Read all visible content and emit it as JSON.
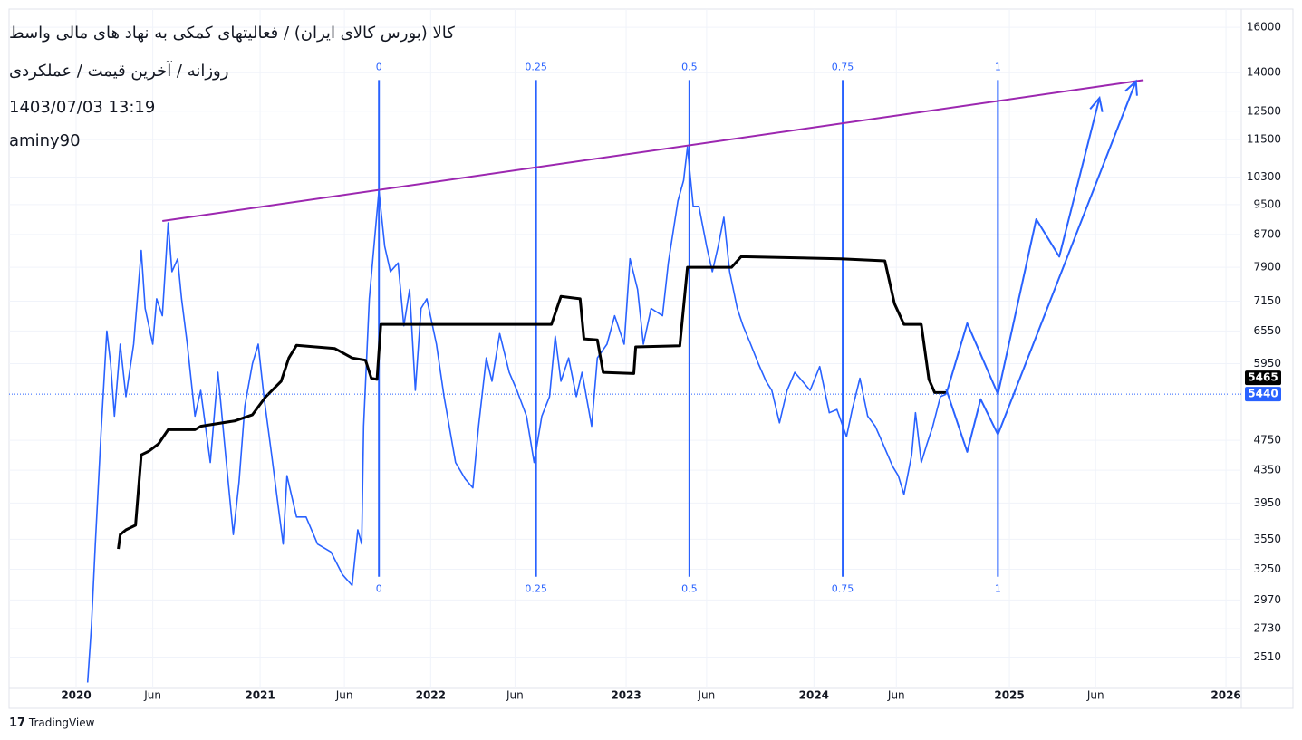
{
  "chart_data": {
    "type": "line",
    "title": "کالا (بورس کالای ایران) / فعالیتهای کمکی به نهاد های مالی واسط",
    "subtitle": "روزانه / آخرین قیمت / عملکردی",
    "date": "1403/07/03 13:19",
    "author": "aminy90",
    "brand": "TradingView",
    "log_scale": true,
    "grid": true,
    "xlim": [
      2019.65,
      2026.08
    ],
    "xticks": [
      {
        "value": 2020,
        "label": "2020"
      },
      {
        "value": 2020.4,
        "label": "Jun"
      },
      {
        "value": 2020.96,
        "label": "2021"
      },
      {
        "value": 2021.4,
        "label": "Jun"
      },
      {
        "value": 2021.85,
        "label": "2022"
      },
      {
        "value": 2022.29,
        "label": "Jun"
      },
      {
        "value": 2022.87,
        "label": "2023"
      },
      {
        "value": 2023.29,
        "label": "Jun"
      },
      {
        "value": 2023.85,
        "label": "2024"
      },
      {
        "value": 2024.28,
        "label": "Jun"
      },
      {
        "value": 2024.87,
        "label": "2025"
      },
      {
        "value": 2025.32,
        "label": "Jun"
      },
      {
        "value": 2026,
        "label": "2026"
      }
    ],
    "ylim": [
      2290,
      16880
    ],
    "yticks": [
      2510,
      2730,
      2970,
      3250,
      3550,
      3950,
      4350,
      4750,
      5950,
      6550,
      7150,
      7900,
      8700,
      9500,
      10300,
      11500,
      12500,
      14000,
      16000
    ],
    "series": [
      {
        "color": "#2962ff",
        "width": 1.6,
        "x": [
          2020.06,
          2020.08,
          2020.1,
          2020.13,
          2020.16,
          2020.18,
          2020.2,
          2020.23,
          2020.26,
          2020.3,
          2020.34,
          2020.36,
          2020.4,
          2020.42,
          2020.45,
          2020.48,
          2020.5,
          2020.53,
          2020.55,
          2020.58,
          2020.62,
          2020.65,
          2020.7,
          2020.74,
          2020.78,
          2020.82,
          2020.85,
          2020.88,
          2020.92,
          2020.95,
          2020.98,
          2021.02,
          2021.05,
          2021.08,
          2021.1,
          2021.15,
          2021.2,
          2021.26,
          2021.33,
          2021.39,
          2021.44,
          2021.47,
          2021.49,
          2021.5,
          2021.53,
          2021.58,
          2021.61,
          2021.64,
          2021.68,
          2021.71,
          2021.74,
          2021.77,
          2021.8,
          2021.83,
          2021.88,
          2021.92,
          2021.98,
          2022.03,
          2022.07,
          2022.1,
          2022.14,
          2022.17,
          2022.21,
          2022.26,
          2022.3,
          2022.35,
          2022.39,
          2022.43,
          2022.47,
          2022.5,
          2022.53,
          2022.57,
          2022.61,
          2022.64,
          2022.69,
          2022.72,
          2022.77,
          2022.81,
          2022.86,
          2022.89,
          2022.93,
          2022.96,
          2023.0,
          2023.06,
          2023.09,
          2023.14,
          2023.17,
          2023.19,
          2023.22,
          2023.25,
          2023.29,
          2023.32,
          2023.35,
          2023.38,
          2023.41,
          2023.45,
          2023.48,
          2023.52,
          2023.56,
          2023.6,
          2023.63,
          2023.67,
          2023.71,
          2023.75,
          2023.79,
          2023.83,
          2023.88,
          2023.93,
          2023.97,
          2024.02,
          2024.05,
          2024.09,
          2024.13,
          2024.17,
          2024.21,
          2024.26,
          2024.29,
          2024.32,
          2024.36,
          2024.38,
          2024.41,
          2024.44,
          2024.47,
          2024.51,
          2024.54
        ],
        "values": [
          2330,
          2750,
          3500,
          4850,
          6550,
          5950,
          5100,
          6300,
          5400,
          6300,
          8300,
          7000,
          6300,
          7200,
          6850,
          9000,
          7800,
          8100,
          7200,
          6300,
          5100,
          5500,
          4450,
          5800,
          4550,
          3600,
          4200,
          5250,
          5950,
          6300,
          5400,
          4550,
          3990,
          3500,
          4280,
          3790,
          3790,
          3500,
          3420,
          3200,
          3100,
          3650,
          3500,
          4950,
          7200,
          9900,
          8400,
          7800,
          8000,
          6650,
          7400,
          5500,
          7000,
          7200,
          6300,
          5400,
          4450,
          4240,
          4130,
          4950,
          6050,
          5650,
          6500,
          5800,
          5500,
          5100,
          4450,
          5100,
          5400,
          6450,
          5650,
          6050,
          5400,
          5800,
          4950,
          6050,
          6300,
          6850,
          6300,
          8100,
          7400,
          6300,
          7000,
          6850,
          8000,
          9600,
          10200,
          11250,
          9450,
          9450,
          8400,
          7800,
          8400,
          9150,
          7800,
          7000,
          6650,
          6300,
          5950,
          5650,
          5500,
          5000,
          5500,
          5800,
          5650,
          5500,
          5900,
          5150,
          5200,
          4800,
          5200,
          5700,
          5100,
          4950,
          4700,
          4400,
          4280,
          4050,
          4550,
          5150,
          4450,
          4700,
          4950,
          5400,
          5440
        ]
      },
      {
        "color": "#000000",
        "width": 3,
        "x": [
          2020.22,
          2020.23,
          2020.26,
          2020.31,
          2020.34,
          2020.38,
          2020.43,
          2020.48,
          2020.62,
          2020.65,
          2020.83,
          2020.92,
          2020.99,
          2021.07,
          2021.11,
          2021.15,
          2021.35,
          2021.44,
          2021.51,
          2021.54,
          2021.57,
          2021.59,
          2022.48,
          2022.53,
          2022.63,
          2022.65,
          2022.72,
          2022.75,
          2022.91,
          2022.92,
          2023.15,
          2023.19,
          2023.42,
          2023.47,
          2023.99,
          2024.22,
          2024.27,
          2024.32,
          2024.41,
          2024.45,
          2024.48,
          2024.54
        ],
        "values": [
          3450,
          3600,
          3650,
          3700,
          4550,
          4600,
          4700,
          4900,
          4900,
          4950,
          5030,
          5120,
          5400,
          5650,
          6050,
          6280,
          6220,
          6050,
          6010,
          5700,
          5680,
          6680,
          6680,
          7250,
          7200,
          6400,
          6380,
          5800,
          5780,
          6250,
          6270,
          7900,
          7900,
          8150,
          8100,
          8050,
          7100,
          6680,
          6680,
          5680,
          5465,
          5465
        ]
      }
    ],
    "trend_line": {
      "color": "#9c27b0",
      "x": [
        2020.45,
        2025.57
      ],
      "values": [
        9050,
        13700
      ]
    },
    "time_zones": {
      "color": "#2962ff",
      "x": [
        2021.58,
        2022.4,
        2023.2,
        2024.0,
        2024.81
      ],
      "labels": [
        0,
        0.25,
        0.5,
        0.75,
        1
      ],
      "top": 13700,
      "bottom": 3180
    },
    "projections": [
      {
        "color": "#2962ff",
        "x": [
          2024.54,
          2024.65,
          2024.81,
          2025.01,
          2025.13,
          2025.34
        ],
        "values": [
          5440,
          6700,
          5440,
          9100,
          8150,
          13000
        ]
      },
      {
        "color": "#2962ff",
        "x": [
          2024.54,
          2024.65,
          2024.72,
          2024.81,
          2025.53
        ],
        "values": [
          5520,
          4590,
          5360,
          4830,
          13650
        ]
      }
    ]
  }
}
